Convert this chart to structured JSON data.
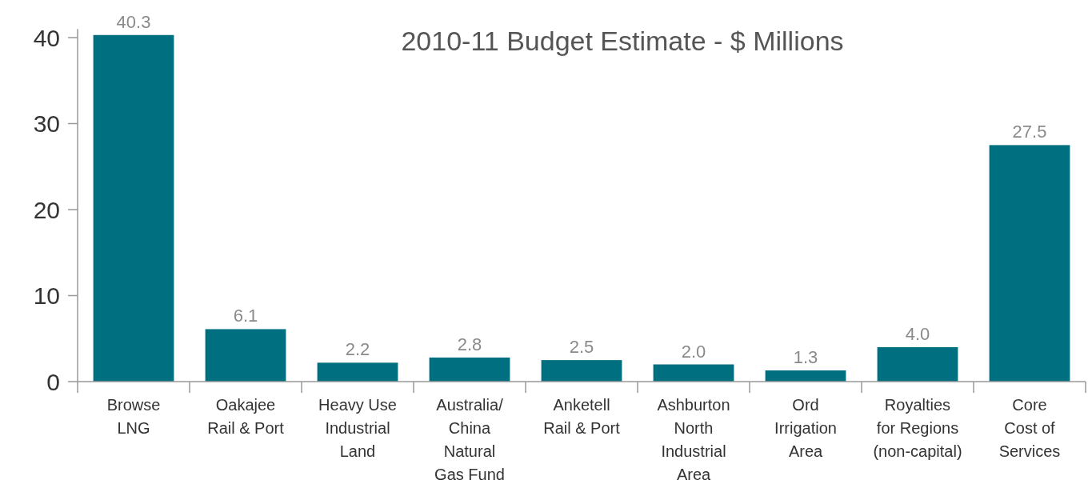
{
  "chart_data": {
    "type": "bar",
    "title": "2010-11 Budget Estimate - $ Millions",
    "categories": [
      "Browse\nLNG",
      "Oakajee\nRail & Port",
      "Heavy Use\nIndustrial\nLand",
      "Australia/\nChina\nNatural\nGas Fund",
      "Anketell\nRail & Port",
      "Ashburton\nNorth\nIndustrial\nArea",
      "Ord\nIrrigation\nArea",
      "Royalties\nfor Regions\n(non-capital)",
      "Core\nCost of\nServices"
    ],
    "values": [
      40.3,
      6.1,
      2.2,
      2.8,
      2.5,
      2.0,
      1.3,
      4.0,
      27.5
    ],
    "value_labels": [
      "40.3",
      "6.1",
      "2.2",
      "2.8",
      "2.5",
      "2.0",
      "1.3",
      "4.0",
      "27.5"
    ],
    "color": "#006f80",
    "ylim": [
      0,
      41
    ],
    "yticks": [
      0,
      10,
      20,
      30,
      40
    ],
    "grid": false
  }
}
